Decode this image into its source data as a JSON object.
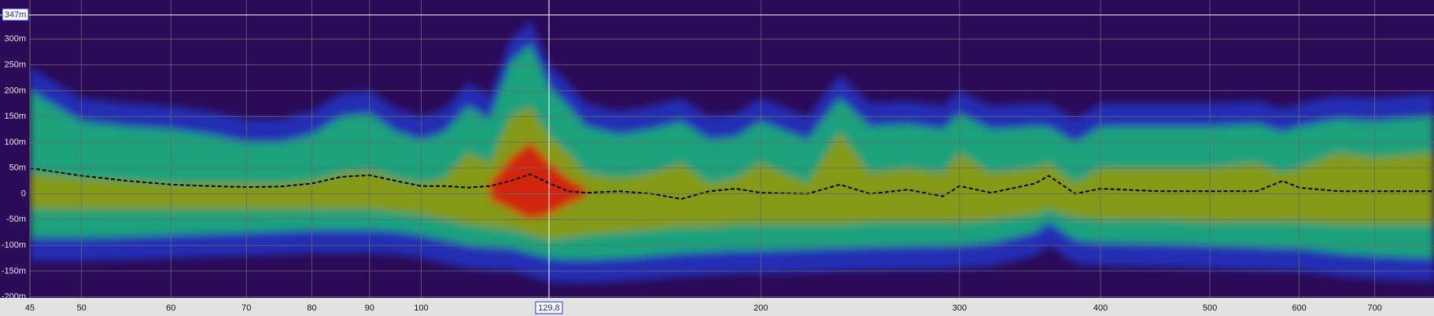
{
  "chart_data": {
    "type": "spectrogram",
    "x": [
      45,
      50,
      55,
      60,
      65,
      70,
      75,
      80,
      85,
      90,
      95,
      100,
      105,
      110,
      115,
      120,
      125,
      130,
      135,
      140,
      150,
      160,
      170,
      180,
      190,
      200,
      220,
      235,
      250,
      270,
      290,
      300,
      320,
      350,
      360,
      380,
      400,
      450,
      500,
      550,
      580,
      600,
      650,
      700,
      790
    ],
    "xlim": [
      45,
      790
    ],
    "log_x": true,
    "xticks": [
      45,
      50,
      60,
      70,
      80,
      90,
      100,
      200,
      300,
      400,
      500,
      600,
      700
    ],
    "ylim": [
      -202,
      376
    ],
    "yticks": [
      {
        "value": -200,
        "label": "-200m"
      },
      {
        "value": -150,
        "label": "-150m"
      },
      {
        "value": -100,
        "label": "-100m"
      },
      {
        "value": -50,
        "label": "-50m"
      },
      0,
      {
        "value": 50,
        "label": "50m"
      },
      {
        "value": 100,
        "label": "100m"
      },
      {
        "value": 150,
        "label": "150m"
      },
      {
        "value": 200,
        "label": "200m"
      },
      {
        "value": 250,
        "label": "250m"
      },
      {
        "value": 300,
        "label": "300m"
      }
    ],
    "grid": true,
    "bands": [
      {
        "color": "#2230b8",
        "upper": [
          245,
          185,
          175,
          170,
          160,
          145,
          145,
          160,
          195,
          200,
          165,
          150,
          165,
          215,
          190,
          300,
          335,
          250,
          215,
          175,
          160,
          170,
          185,
          150,
          155,
          185,
          150,
          230,
          175,
          180,
          170,
          200,
          170,
          175,
          175,
          145,
          175,
          175,
          175,
          180,
          165,
          175,
          190,
          185,
          195
        ],
        "lower": [
          -130,
          -130,
          -128,
          -125,
          -122,
          -120,
          -118,
          -115,
          -115,
          -115,
          -118,
          -125,
          -135,
          -145,
          -148,
          -150,
          -160,
          -170,
          -172,
          -172,
          -170,
          -165,
          -160,
          -158,
          -155,
          -155,
          -152,
          -150,
          -148,
          -147,
          -146,
          -145,
          -140,
          -120,
          -100,
          -135,
          -140,
          -142,
          -145,
          -148,
          -150,
          -150,
          -160,
          -165,
          -170
        ]
      },
      {
        "color": "#1aa87a",
        "upper": [
          200,
          140,
          130,
          125,
          115,
          100,
          100,
          115,
          150,
          155,
          120,
          105,
          120,
          170,
          145,
          255,
          290,
          205,
          170,
          130,
          115,
          125,
          140,
          105,
          110,
          140,
          105,
          185,
          130,
          135,
          125,
          155,
          125,
          130,
          130,
          100,
          130,
          130,
          130,
          135,
          120,
          130,
          145,
          140,
          150
        ],
        "lower": [
          -85,
          -85,
          -83,
          -80,
          -77,
          -75,
          -73,
          -70,
          -70,
          -70,
          -73,
          -80,
          -90,
          -100,
          -103,
          -105,
          -115,
          -125,
          -127,
          -127,
          -125,
          -120,
          -115,
          -113,
          -110,
          -110,
          -107,
          -105,
          -103,
          -102,
          -101,
          -100,
          -95,
          -75,
          -55,
          -90,
          -95,
          -97,
          -100,
          -103,
          -105,
          -105,
          -115,
          -120,
          -125
        ]
      },
      {
        "color": "#8a9a10",
        "upper": [
          40,
          30,
          25,
          20,
          20,
          20,
          20,
          25,
          40,
          45,
          30,
          20,
          30,
          80,
          60,
          150,
          170,
          110,
          80,
          40,
          30,
          40,
          60,
          20,
          30,
          60,
          20,
          120,
          40,
          50,
          40,
          80,
          40,
          50,
          60,
          20,
          50,
          50,
          50,
          60,
          40,
          50,
          80,
          70,
          80
        ],
        "lower": [
          -30,
          -30,
          -30,
          -30,
          -30,
          -30,
          -30,
          -30,
          -30,
          -30,
          -35,
          -40,
          -50,
          -60,
          -65,
          -70,
          -80,
          -90,
          -85,
          -80,
          -75,
          -70,
          -65,
          -65,
          -60,
          -60,
          -60,
          -60,
          -55,
          -55,
          -55,
          -55,
          -50,
          -40,
          -30,
          -45,
          -50,
          -50,
          -55,
          -55,
          -55,
          -55,
          -60,
          -60,
          -60
        ]
      },
      {
        "color": "#d42010",
        "x": [
          115,
          120,
          125,
          130,
          135,
          140
        ],
        "upper": [
          20,
          70,
          100,
          60,
          30,
          10
        ],
        "lower": [
          -10,
          -30,
          -50,
          -40,
          -20,
          -5
        ]
      }
    ],
    "series": [
      {
        "color": "#000000",
        "values": [
          50,
          35,
          25,
          18,
          15,
          13,
          14,
          20,
          33,
          36,
          25,
          15,
          15,
          12,
          15,
          25,
          38,
          20,
          5,
          2,
          5,
          0,
          -10,
          5,
          10,
          2,
          0,
          18,
          0,
          8,
          -5,
          15,
          2,
          20,
          35,
          0,
          10,
          5,
          5,
          5,
          25,
          12,
          5,
          5,
          5
        ]
      }
    ],
    "cursor": {
      "x": 129.8,
      "x_label": "129,8",
      "y": 347,
      "y_label": "347m"
    }
  }
}
